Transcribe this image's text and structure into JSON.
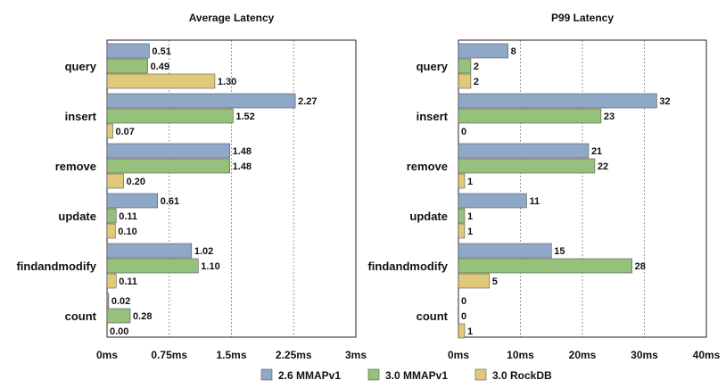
{
  "legend": {
    "entries": [
      "2.6 MMAPv1",
      "3.0 MMAPv1",
      "3.0 RockDB"
    ],
    "placement": "bottom-center"
  },
  "colors": {
    "2.6 MMAPv1": "#8fa8c8",
    "3.0 MMAPv1": "#95c17a",
    "3.0 RockDB": "#e1c97a",
    "bar_edge": "#555555",
    "grid": "#999999"
  },
  "chart_data": [
    {
      "type": "bar",
      "orientation": "horizontal",
      "title": "Average Latency",
      "categories": [
        "query",
        "insert",
        "remove",
        "update",
        "findandmodify",
        "count"
      ],
      "series": [
        {
          "name": "2.6 MMAPv1",
          "values": [
            0.51,
            2.27,
            1.48,
            0.61,
            1.02,
            0.02
          ],
          "labels": [
            "0.51",
            "2.27",
            "1.48",
            "0.61",
            "1.02",
            "0.02"
          ]
        },
        {
          "name": "3.0 MMAPv1",
          "values": [
            0.49,
            1.52,
            1.48,
            0.11,
            1.1,
            0.28
          ],
          "labels": [
            "0.49",
            "1.52",
            "1.48",
            "0.11",
            "1.10",
            "0.28"
          ]
        },
        {
          "name": "3.0 RockDB",
          "values": [
            1.3,
            0.07,
            0.2,
            0.1,
            0.11,
            0.0
          ],
          "labels": [
            "1.30",
            "0.07",
            "0.20",
            "0.10",
            "0.11",
            "0.00"
          ]
        }
      ],
      "xlim": [
        0,
        3
      ],
      "xticks": [
        0,
        0.75,
        1.5,
        2.25,
        3
      ],
      "xtick_labels": [
        "0ms",
        "0.75ms",
        "1.5ms",
        "2.25ms",
        "3ms"
      ],
      "grid": "vertical dotted"
    },
    {
      "type": "bar",
      "orientation": "horizontal",
      "title": "P99 Latency",
      "categories": [
        "query",
        "insert",
        "remove",
        "update",
        "findandmodify",
        "count"
      ],
      "series": [
        {
          "name": "2.6 MMAPv1",
          "values": [
            8,
            32,
            21,
            11,
            15,
            0
          ],
          "labels": [
            "8",
            "32",
            "21",
            "11",
            "15",
            "0"
          ]
        },
        {
          "name": "3.0 MMAPv1",
          "values": [
            2,
            23,
            22,
            1,
            28,
            0
          ],
          "labels": [
            "2",
            "23",
            "22",
            "1",
            "28",
            "0"
          ]
        },
        {
          "name": "3.0 RockDB",
          "values": [
            2,
            0,
            1,
            1,
            5,
            1
          ],
          "labels": [
            "2",
            "0",
            "1",
            "1",
            "5",
            "1"
          ]
        }
      ],
      "xlim": [
        0,
        40
      ],
      "xticks": [
        0,
        10,
        20,
        30,
        40
      ],
      "xtick_labels": [
        "0ms",
        "10ms",
        "20ms",
        "30ms",
        "40ms"
      ],
      "grid": "vertical dotted"
    }
  ]
}
